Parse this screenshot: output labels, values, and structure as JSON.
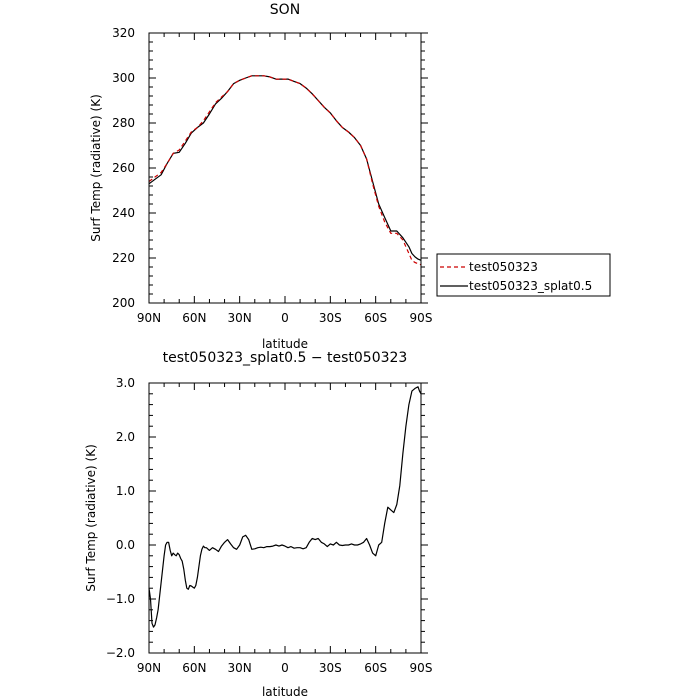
{
  "chart_data": [
    {
      "type": "line",
      "title": "SON",
      "xlabel": "latitude",
      "ylabel": "Surf Temp (radiative) (K)",
      "xlim": [
        -90,
        90
      ],
      "ylim": [
        200,
        320
      ],
      "x_ticks": [
        {
          "v": -90,
          "label": "90N"
        },
        {
          "v": -60,
          "label": "60N"
        },
        {
          "v": -30,
          "label": "30N"
        },
        {
          "v": 0,
          "label": "0"
        },
        {
          "v": 30,
          "label": "30S"
        },
        {
          "v": 60,
          "label": "60S"
        },
        {
          "v": 90,
          "label": "90S"
        }
      ],
      "y_ticks": [
        200,
        220,
        240,
        260,
        280,
        300,
        320
      ],
      "legend": {
        "placement": "right"
      },
      "series": [
        {
          "name": "test050323",
          "color": "#cc0000",
          "dash": "dashed",
          "x": [
            -90,
            -86,
            -82,
            -78,
            -74,
            -70,
            -66,
            -62,
            -58,
            -54,
            -50,
            -46,
            -42,
            -38,
            -34,
            -30,
            -26,
            -22,
            -18,
            -14,
            -10,
            -6,
            -2,
            2,
            6,
            10,
            14,
            18,
            22,
            26,
            30,
            34,
            38,
            42,
            46,
            50,
            54,
            58,
            62,
            66,
            70,
            74,
            78,
            80,
            82,
            84,
            86,
            88,
            90
          ],
          "values": [
            254,
            256,
            258,
            262,
            266.5,
            268,
            272,
            276,
            278,
            281,
            285,
            289,
            291.5,
            294,
            297.5,
            299,
            300,
            301,
            301,
            301,
            300.5,
            299.5,
            299.5,
            299.5,
            298.5,
            297.5,
            295.5,
            293,
            290,
            287,
            284.5,
            281,
            278,
            276,
            273.5,
            270,
            264,
            253,
            243,
            236,
            231,
            231,
            228,
            225,
            222,
            219,
            218,
            217.5,
            217
          ]
        },
        {
          "name": "test050323_splat0.5",
          "color": "#000000",
          "dash": "solid",
          "x": [
            -90,
            -86,
            -82,
            -78,
            -74,
            -70,
            -66,
            -62,
            -58,
            -54,
            -50,
            -46,
            -42,
            -38,
            -34,
            -30,
            -26,
            -22,
            -18,
            -14,
            -10,
            -6,
            -2,
            2,
            6,
            10,
            14,
            18,
            22,
            26,
            30,
            34,
            38,
            42,
            46,
            50,
            54,
            58,
            62,
            66,
            70,
            74,
            78,
            80,
            82,
            84,
            86,
            88,
            90
          ],
          "values": [
            253,
            255,
            257,
            262,
            266.5,
            267,
            271,
            275.5,
            278,
            280,
            284,
            288.5,
            291,
            294,
            297.5,
            299,
            300,
            301,
            301,
            301,
            300.5,
            299.5,
            299.5,
            299.5,
            298.5,
            297.5,
            295.5,
            293,
            290,
            287,
            284.5,
            281,
            278,
            276,
            273.5,
            270,
            264,
            254,
            244,
            238,
            232,
            232,
            229,
            227,
            225,
            222,
            220.5,
            219.5,
            219
          ]
        }
      ]
    },
    {
      "type": "line",
      "title": "test050323_splat0.5 − test050323",
      "xlabel": "latitude",
      "ylabel": "Surf Temp (radiative) (K)",
      "xlim": [
        -90,
        90
      ],
      "ylim": [
        -2.0,
        3.0
      ],
      "x_ticks": [
        {
          "v": -90,
          "label": "90N"
        },
        {
          "v": -60,
          "label": "60N"
        },
        {
          "v": -30,
          "label": "30N"
        },
        {
          "v": 0,
          "label": "0"
        },
        {
          "v": 30,
          "label": "30S"
        },
        {
          "v": 60,
          "label": "60S"
        },
        {
          "v": 90,
          "label": "90S"
        }
      ],
      "y_ticks": [
        {
          "v": -2.0,
          "label": "−2.0"
        },
        {
          "v": -1.0,
          "label": "−1.0"
        },
        {
          "v": 0.0,
          "label": "0.0"
        },
        {
          "v": 1.0,
          "label": "1.0"
        },
        {
          "v": 2.0,
          "label": "2.0"
        },
        {
          "v": 3.0,
          "label": "3.0"
        }
      ],
      "series": [
        {
          "color": "#000000",
          "x": [
            -90,
            -89,
            -88,
            -87,
            -86,
            -85,
            -84,
            -83,
            -82,
            -81,
            -80,
            -79,
            -78,
            -77,
            -76,
            -75,
            -74,
            -73,
            -72,
            -71,
            -70,
            -69,
            -68,
            -67,
            -66,
            -65,
            -64,
            -63,
            -62,
            -61,
            -60,
            -59,
            -58,
            -57,
            -56,
            -55,
            -54,
            -53,
            -52,
            -50,
            -48,
            -46,
            -44,
            -42,
            -40,
            -38,
            -36,
            -34,
            -32,
            -30,
            -28,
            -26,
            -24,
            -22,
            -20,
            -18,
            -16,
            -14,
            -12,
            -10,
            -8,
            -6,
            -4,
            -2,
            0,
            2,
            4,
            6,
            8,
            10,
            12,
            14,
            16,
            18,
            20,
            22,
            24,
            26,
            28,
            30,
            32,
            34,
            36,
            38,
            40,
            42,
            44,
            46,
            48,
            50,
            52,
            54,
            56,
            58,
            60,
            62,
            64,
            66,
            68,
            70,
            72,
            74,
            76,
            78,
            80,
            82,
            84,
            86,
            88,
            89,
            90
          ],
          "values": [
            -0.8,
            -1.0,
            -1.45,
            -1.52,
            -1.48,
            -1.35,
            -1.2,
            -0.95,
            -0.7,
            -0.45,
            -0.2,
            0.0,
            0.05,
            0.05,
            -0.1,
            -0.2,
            -0.15,
            -0.18,
            -0.2,
            -0.15,
            -0.18,
            -0.25,
            -0.3,
            -0.45,
            -0.65,
            -0.8,
            -0.82,
            -0.75,
            -0.76,
            -0.78,
            -0.8,
            -0.75,
            -0.6,
            -0.4,
            -0.2,
            -0.08,
            -0.02,
            -0.05,
            -0.05,
            -0.1,
            -0.05,
            -0.08,
            -0.12,
            -0.02,
            0.05,
            0.1,
            0.02,
            -0.05,
            -0.08,
            0.0,
            0.15,
            0.18,
            0.1,
            -0.08,
            -0.07,
            -0.05,
            -0.04,
            -0.05,
            -0.03,
            -0.03,
            -0.02,
            0.0,
            -0.02,
            0.0,
            -0.02,
            -0.05,
            -0.03,
            -0.06,
            -0.05,
            -0.05,
            -0.07,
            -0.05,
            0.05,
            0.12,
            0.1,
            0.12,
            0.05,
            0.02,
            -0.03,
            0.02,
            0.0,
            0.05,
            0.0,
            -0.01,
            0.0,
            0.0,
            0.02,
            0.0,
            0.0,
            0.02,
            0.05,
            0.12,
            0.0,
            -0.15,
            -0.2,
            0.0,
            0.05,
            0.4,
            0.7,
            0.65,
            0.6,
            0.75,
            1.1,
            1.7,
            2.2,
            2.6,
            2.85,
            2.9,
            2.93,
            2.85,
            2.8
          ]
        }
      ]
    }
  ]
}
